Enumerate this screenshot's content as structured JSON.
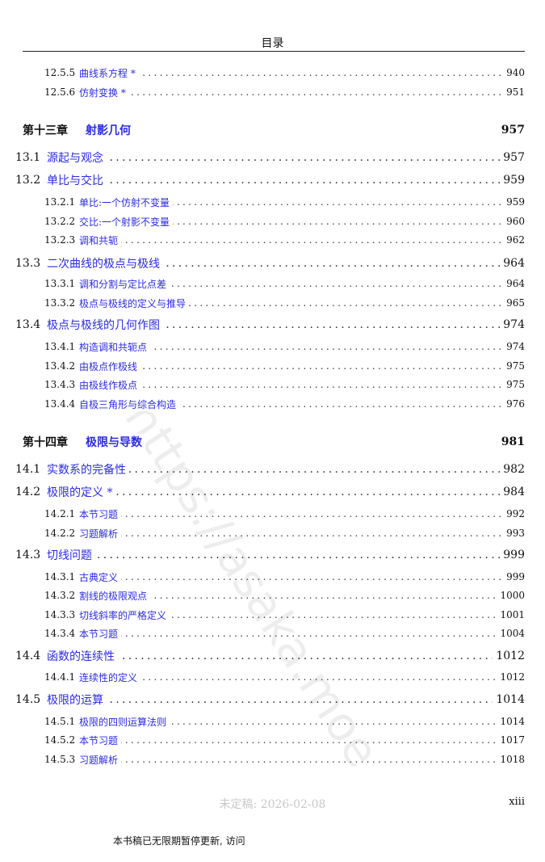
{
  "header": {
    "title": "目录"
  },
  "entries": [
    {
      "level": "sub",
      "num": "12.5.5",
      "title": "曲线系方程 *",
      "page": "940"
    },
    {
      "level": "sub",
      "num": "12.5.6",
      "title": "仿射变换 *",
      "page": "951"
    },
    {
      "level": "chap",
      "num": "第十三章",
      "title": "射影几何",
      "page": "957"
    },
    {
      "level": "sec",
      "num": "13.1",
      "title": "源起与观念",
      "page": "957"
    },
    {
      "level": "sec",
      "num": "13.2",
      "title": "单比与交比",
      "page": "959"
    },
    {
      "level": "sub",
      "num": "13.2.1",
      "title": "单比:一个仿射不变量",
      "page": "959"
    },
    {
      "level": "sub",
      "num": "13.2.2",
      "title": "交比:一个射影不变量",
      "page": "960"
    },
    {
      "level": "sub",
      "num": "13.2.3",
      "title": "调和共轭",
      "page": "962"
    },
    {
      "level": "sec",
      "num": "13.3",
      "title": "二次曲线的极点与极线",
      "page": "964"
    },
    {
      "level": "sub",
      "num": "13.3.1",
      "title": "调和分割与定比点差",
      "page": "964"
    },
    {
      "level": "sub",
      "num": "13.3.2",
      "title": "极点与极线的定义与推导",
      "page": "965"
    },
    {
      "level": "sec",
      "num": "13.4",
      "title": "极点与极线的几何作图",
      "page": "974"
    },
    {
      "level": "sub",
      "num": "13.4.1",
      "title": "构造调和共轭点",
      "page": "974"
    },
    {
      "level": "sub",
      "num": "13.4.2",
      "title": "由极点作极线",
      "page": "975"
    },
    {
      "level": "sub",
      "num": "13.4.3",
      "title": "由极线作极点",
      "page": "975"
    },
    {
      "level": "sub",
      "num": "13.4.4",
      "title": "自极三角形与综合构造",
      "page": "976"
    },
    {
      "level": "chap",
      "num": "第十四章",
      "title": "极限与导数",
      "page": "981"
    },
    {
      "level": "sec",
      "num": "14.1",
      "title": "实数系的完备性",
      "page": "982"
    },
    {
      "level": "sec",
      "num": "14.2",
      "title": "极限的定义 *",
      "page": "984"
    },
    {
      "level": "sub",
      "num": "14.2.1",
      "title": "本节习题",
      "page": "992"
    },
    {
      "level": "sub",
      "num": "14.2.2",
      "title": "习题解析",
      "page": "993"
    },
    {
      "level": "sec",
      "num": "14.3",
      "title": "切线问题",
      "page": "999"
    },
    {
      "level": "sub",
      "num": "14.3.1",
      "title": "古典定义",
      "page": "999"
    },
    {
      "level": "sub",
      "num": "14.3.2",
      "title": "割线的极限观点",
      "page": "1000"
    },
    {
      "level": "sub",
      "num": "14.3.3",
      "title": "切线斜率的严格定义",
      "page": "1001"
    },
    {
      "level": "sub",
      "num": "14.3.4",
      "title": "本节习题",
      "page": "1004"
    },
    {
      "level": "sec",
      "num": "14.4",
      "title": "函数的连续性",
      "page": "1012"
    },
    {
      "level": "sub",
      "num": "14.4.1",
      "title": "连续性的定义",
      "page": "1012"
    },
    {
      "level": "sec",
      "num": "14.5",
      "title": "极限的运算",
      "page": "1014"
    },
    {
      "level": "sub",
      "num": "14.5.1",
      "title": "极限的四则运算法则",
      "page": "1014"
    },
    {
      "level": "sub",
      "num": "14.5.2",
      "title": "本节习题",
      "page": "1017"
    },
    {
      "level": "sub",
      "num": "14.5.3",
      "title": "习题解析",
      "page": "1018"
    }
  ],
  "footer": {
    "draft": "未定稿: 2026-02-08",
    "folio": "xiii",
    "notice": "本书稿已无限期暂停更新, 访问"
  },
  "watermark": "https://asaka.moe",
  "colors": {
    "link": "#2b2be6",
    "draft": "#c8c8c8"
  }
}
